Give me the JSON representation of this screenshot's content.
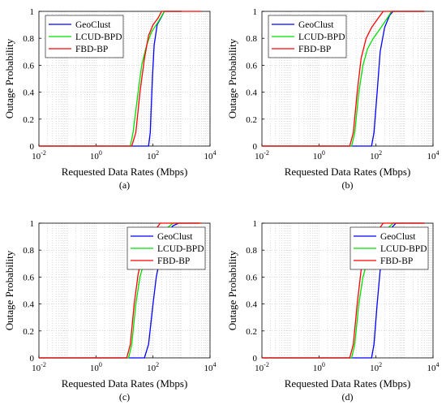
{
  "figure": {
    "panels": [
      {
        "caption": "(a)"
      },
      {
        "caption": "(b)"
      },
      {
        "caption": "(c)"
      },
      {
        "caption": "(d)"
      }
    ]
  },
  "chart_data": [
    {
      "type": "line",
      "caption": "(a)",
      "xlabel": "Requested Data Rates (Mbps)",
      "ylabel": "Outage Probability",
      "xscale": "log",
      "xlim": [
        0.01,
        10000
      ],
      "ylim": [
        0,
        1
      ],
      "xticks": [
        0.01,
        1,
        100,
        10000
      ],
      "xtick_labels": [
        {
          "base": "10",
          "exp": "-2"
        },
        {
          "base": "10",
          "exp": "0"
        },
        {
          "base": "10",
          "exp": "2"
        },
        {
          "base": "10",
          "exp": "4"
        }
      ],
      "yticks": [
        0,
        0.2,
        0.4,
        0.6,
        0.8,
        1
      ],
      "ytick_labels": [
        "0",
        "0.2",
        "0.4",
        "0.6",
        "0.8",
        "1"
      ],
      "grid": true,
      "legend": "top-left",
      "colors": {
        "GeoClust": "#0000ff",
        "LCUD-BPD": "#00e000",
        "FBD-BP": "#ff0000"
      },
      "series": [
        {
          "name": "GeoClust",
          "points": [
            [
              0.01,
              0
            ],
            [
              70,
              0
            ],
            [
              80,
              0.1
            ],
            [
              95,
              0.5
            ],
            [
              110,
              0.75
            ],
            [
              140,
              0.9
            ],
            [
              200,
              0.96
            ],
            [
              250,
              1
            ],
            [
              1000,
              1
            ]
          ]
        },
        {
          "name": "LCUD-BPD",
          "points": [
            [
              0.01,
              0
            ],
            [
              16,
              0
            ],
            [
              20,
              0.1
            ],
            [
              30,
              0.4
            ],
            [
              40,
              0.6
            ],
            [
              60,
              0.75
            ],
            [
              90,
              0.85
            ],
            [
              150,
              0.92
            ],
            [
              250,
              1
            ],
            [
              1000,
              1
            ]
          ]
        },
        {
          "name": "FBD-BP",
          "points": [
            [
              0.01,
              0
            ],
            [
              18,
              0
            ],
            [
              25,
              0.1
            ],
            [
              35,
              0.4
            ],
            [
              50,
              0.65
            ],
            [
              70,
              0.82
            ],
            [
              100,
              0.9
            ],
            [
              150,
              0.95
            ],
            [
              200,
              1
            ],
            [
              5000,
              1
            ]
          ]
        }
      ]
    },
    {
      "type": "line",
      "caption": "(b)",
      "xlabel": "Requested Data Rates (Mbps)",
      "ylabel": "Outage Probability",
      "xscale": "log",
      "xlim": [
        0.01,
        10000
      ],
      "ylim": [
        0,
        1
      ],
      "xticks": [
        0.01,
        1,
        100,
        10000
      ],
      "xtick_labels": [
        {
          "base": "10",
          "exp": "-2"
        },
        {
          "base": "10",
          "exp": "0"
        },
        {
          "base": "10",
          "exp": "2"
        },
        {
          "base": "10",
          "exp": "4"
        }
      ],
      "yticks": [
        0,
        0.2,
        0.4,
        0.6,
        0.8,
        1
      ],
      "ytick_labels": [
        "0",
        "0.2",
        "0.4",
        "0.6",
        "0.8",
        "1"
      ],
      "grid": true,
      "legend": "top-left",
      "colors": {
        "GeoClust": "#0000ff",
        "LCUD-BPD": "#00e000",
        "FBD-BP": "#ff0000"
      },
      "series": [
        {
          "name": "GeoClust",
          "points": [
            [
              0.01,
              0
            ],
            [
              70,
              0
            ],
            [
              85,
              0.1
            ],
            [
              110,
              0.4
            ],
            [
              140,
              0.7
            ],
            [
              200,
              0.88
            ],
            [
              300,
              0.97
            ],
            [
              400,
              1
            ],
            [
              5000,
              1
            ]
          ]
        },
        {
          "name": "LCUD-BPD",
          "points": [
            [
              0.01,
              0
            ],
            [
              14,
              0
            ],
            [
              18,
              0.1
            ],
            [
              25,
              0.4
            ],
            [
              35,
              0.6
            ],
            [
              50,
              0.72
            ],
            [
              80,
              0.8
            ],
            [
              150,
              0.88
            ],
            [
              250,
              0.95
            ],
            [
              350,
              1
            ],
            [
              5000,
              1
            ]
          ]
        },
        {
          "name": "FBD-BP",
          "points": [
            [
              0.01,
              0
            ],
            [
              12,
              0
            ],
            [
              16,
              0.1
            ],
            [
              22,
              0.4
            ],
            [
              30,
              0.65
            ],
            [
              45,
              0.8
            ],
            [
              70,
              0.88
            ],
            [
              120,
              0.95
            ],
            [
              180,
              1
            ],
            [
              5000,
              1
            ]
          ]
        }
      ]
    },
    {
      "type": "line",
      "caption": "(c)",
      "xlabel": "Requested Data Rates (Mbps)",
      "ylabel": "Outage Probability",
      "xscale": "log",
      "xlim": [
        0.01,
        10000
      ],
      "ylim": [
        0,
        1
      ],
      "xticks": [
        0.01,
        1,
        100,
        10000
      ],
      "xtick_labels": [
        {
          "base": "10",
          "exp": "-2"
        },
        {
          "base": "10",
          "exp": "0"
        },
        {
          "base": "10",
          "exp": "2"
        },
        {
          "base": "10",
          "exp": "4"
        }
      ],
      "yticks": [
        0,
        0.2,
        0.4,
        0.6,
        0.8,
        1
      ],
      "ytick_labels": [
        "0",
        "0.2",
        "0.4",
        "0.6",
        "0.8",
        "1"
      ],
      "grid": true,
      "legend": "top-right",
      "colors": {
        "GeoClust": "#0000ff",
        "LCUD-BPD": "#00e000",
        "FBD-BP": "#ff0000"
      },
      "series": [
        {
          "name": "GeoClust",
          "points": [
            [
              0.01,
              0
            ],
            [
              50,
              0
            ],
            [
              70,
              0.1
            ],
            [
              100,
              0.4
            ],
            [
              130,
              0.6
            ],
            [
              200,
              0.8
            ],
            [
              300,
              0.92
            ],
            [
              500,
              0.98
            ],
            [
              800,
              1
            ],
            [
              4000,
              1
            ]
          ]
        },
        {
          "name": "LCUD-BPD",
          "points": [
            [
              0.01,
              0
            ],
            [
              14,
              0
            ],
            [
              18,
              0.1
            ],
            [
              25,
              0.4
            ],
            [
              35,
              0.6
            ],
            [
              50,
              0.72
            ],
            [
              80,
              0.82
            ],
            [
              150,
              0.9
            ],
            [
              300,
              0.96
            ],
            [
              500,
              1
            ],
            [
              5000,
              1
            ]
          ]
        },
        {
          "name": "FBD-BP",
          "points": [
            [
              0.01,
              0
            ],
            [
              12,
              0
            ],
            [
              16,
              0.1
            ],
            [
              22,
              0.4
            ],
            [
              30,
              0.62
            ],
            [
              45,
              0.78
            ],
            [
              70,
              0.88
            ],
            [
              120,
              0.95
            ],
            [
              180,
              1
            ],
            [
              5000,
              1
            ]
          ]
        }
      ]
    },
    {
      "type": "line",
      "caption": "(d)",
      "xlabel": "Requested Data Rates (Mbps)",
      "ylabel": "Outage Probability",
      "xscale": "log",
      "xlim": [
        0.01,
        10000
      ],
      "ylim": [
        0,
        1
      ],
      "xticks": [
        0.01,
        1,
        100,
        10000
      ],
      "xtick_labels": [
        {
          "base": "10",
          "exp": "-2"
        },
        {
          "base": "10",
          "exp": "0"
        },
        {
          "base": "10",
          "exp": "2"
        },
        {
          "base": "10",
          "exp": "4"
        }
      ],
      "yticks": [
        0,
        0.2,
        0.4,
        0.6,
        0.8,
        1
      ],
      "ytick_labels": [
        "0",
        "0.2",
        "0.4",
        "0.6",
        "0.8",
        "1"
      ],
      "grid": true,
      "legend": "top-right",
      "colors": {
        "GeoClust": "#0000ff",
        "LCUD-BPD": "#00e000",
        "FBD-BP": "#ff0000"
      },
      "series": [
        {
          "name": "GeoClust",
          "points": [
            [
              0.01,
              0
            ],
            [
              70,
              0
            ],
            [
              85,
              0.1
            ],
            [
              110,
              0.4
            ],
            [
              140,
              0.65
            ],
            [
              200,
              0.85
            ],
            [
              300,
              0.95
            ],
            [
              500,
              1
            ],
            [
              5000,
              1
            ]
          ]
        },
        {
          "name": "LCUD-BPD",
          "points": [
            [
              0.01,
              0
            ],
            [
              14,
              0
            ],
            [
              18,
              0.1
            ],
            [
              25,
              0.4
            ],
            [
              35,
              0.6
            ],
            [
              50,
              0.72
            ],
            [
              80,
              0.8
            ],
            [
              150,
              0.88
            ],
            [
              250,
              0.96
            ],
            [
              400,
              1
            ],
            [
              5000,
              1
            ]
          ]
        },
        {
          "name": "FBD-BP",
          "points": [
            [
              0.01,
              0
            ],
            [
              12,
              0
            ],
            [
              16,
              0.1
            ],
            [
              22,
              0.4
            ],
            [
              30,
              0.65
            ],
            [
              45,
              0.8
            ],
            [
              70,
              0.88
            ],
            [
              120,
              0.95
            ],
            [
              180,
              1
            ],
            [
              5000,
              1
            ]
          ]
        }
      ]
    }
  ]
}
